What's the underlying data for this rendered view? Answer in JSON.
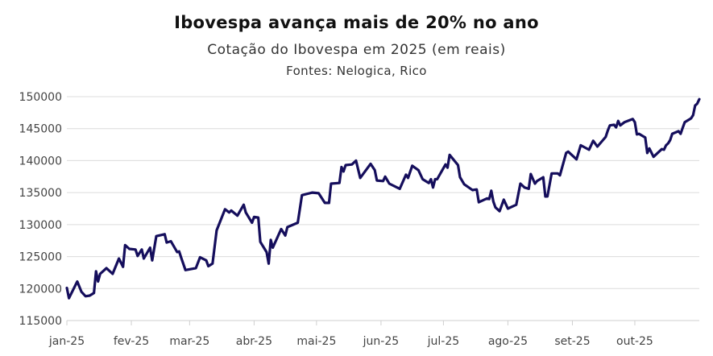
{
  "chart_data": {
    "type": "line",
    "title": "Ibovespa avança mais de 20% no ano",
    "subtitle": "Cotação do Ibovespa em 2025 (em reais)",
    "source": "Fontes: Nelogica, Rico",
    "xlabel": "",
    "ylabel": "",
    "ylim": [
      115000,
      150000
    ],
    "yticks": [
      115000,
      120000,
      125000,
      130000,
      135000,
      140000,
      145000,
      150000
    ],
    "ytick_labels": [
      "115000",
      "120000",
      "125000",
      "130000",
      "135000",
      "140000",
      "145000",
      "150000"
    ],
    "xlim_days": [
      0,
      304
    ],
    "xticks": [
      {
        "day": 0,
        "label": "jan-25"
      },
      {
        "day": 31,
        "label": "fev-25"
      },
      {
        "day": 59,
        "label": "mar-25"
      },
      {
        "day": 90,
        "label": "abr-25"
      },
      {
        "day": 120,
        "label": "mai-25"
      },
      {
        "day": 151,
        "label": "jun-25"
      },
      {
        "day": 181,
        "label": "jul-25"
      },
      {
        "day": 212,
        "label": "ago-25"
      },
      {
        "day": 243,
        "label": "set-25"
      },
      {
        "day": 273,
        "label": "out-25"
      }
    ],
    "grid": true,
    "line_color": "#150e5c",
    "series": [
      {
        "name": "Ibovespa",
        "x_day_of_year": [
          0,
          1,
          3,
          5,
          7,
          9,
          11,
          13,
          14,
          15,
          16,
          19,
          22,
          25,
          27,
          28,
          30,
          33,
          34,
          36,
          37,
          40,
          41,
          43,
          47,
          48,
          50,
          53,
          54,
          55,
          57,
          62,
          64,
          67,
          68,
          70,
          72,
          76,
          78,
          79,
          82,
          85,
          86,
          89,
          90,
          92,
          93,
          96,
          97,
          98,
          99,
          103,
          105,
          106,
          111,
          113,
          118,
          121,
          124,
          126,
          127,
          131,
          132,
          133,
          134,
          137,
          139,
          141,
          146,
          148,
          149,
          152,
          153,
          155,
          160,
          163,
          164,
          166,
          169,
          171,
          174,
          175,
          176,
          177,
          178,
          182,
          183,
          184,
          188,
          189,
          191,
          195,
          197,
          198,
          202,
          203,
          204,
          205,
          206,
          208,
          210,
          212,
          216,
          218,
          220,
          222,
          223,
          225,
          226,
          229,
          230,
          231,
          233,
          236,
          237,
          240,
          241,
          245,
          247,
          251,
          253,
          255,
          259,
          260,
          261,
          263,
          264,
          265,
          266,
          268,
          272,
          273,
          274,
          275,
          278,
          279,
          280,
          282,
          286,
          287,
          288,
          289,
          290,
          291,
          294,
          295,
          296,
          297,
          300,
          301,
          302,
          303,
          304
        ],
        "values": [
          120100,
          118500,
          119800,
          121100,
          119500,
          118800,
          118900,
          119300,
          122700,
          121100,
          122300,
          123200,
          122300,
          124700,
          123400,
          126800,
          126200,
          126100,
          125100,
          126100,
          124700,
          126400,
          124400,
          128200,
          128500,
          127200,
          127400,
          125700,
          125800,
          124800,
          122900,
          123200,
          124900,
          124400,
          123500,
          123900,
          129100,
          132400,
          131900,
          132200,
          131400,
          133100,
          131900,
          130300,
          131200,
          131100,
          127300,
          125700,
          123900,
          127600,
          126400,
          129300,
          128300,
          129600,
          130300,
          134600,
          135000,
          134900,
          133400,
          133400,
          136400,
          136500,
          139000,
          138300,
          139300,
          139400,
          140000,
          137300,
          139500,
          138500,
          136900,
          136800,
          137500,
          136400,
          135600,
          137800,
          137300,
          139200,
          138500,
          137100,
          136500,
          137100,
          135800,
          137100,
          137100,
          139400,
          138900,
          140900,
          139300,
          137400,
          136300,
          135400,
          135500,
          133500,
          134100,
          134000,
          135300,
          133600,
          132700,
          132100,
          133900,
          132500,
          133100,
          136400,
          135800,
          135600,
          137900,
          136400,
          136800,
          137400,
          134400,
          134400,
          138000,
          138000,
          137700,
          141200,
          141400,
          140200,
          142400,
          141700,
          143100,
          142200,
          143700,
          144700,
          145500,
          145600,
          145200,
          146200,
          145500,
          146000,
          146500,
          146000,
          144100,
          144200,
          143600,
          141200,
          141900,
          140600,
          141800,
          141700,
          142400,
          142700,
          143200,
          144200,
          144600,
          144200,
          145100,
          146000,
          146600,
          147100,
          148600,
          148900,
          149600
        ]
      }
    ]
  }
}
